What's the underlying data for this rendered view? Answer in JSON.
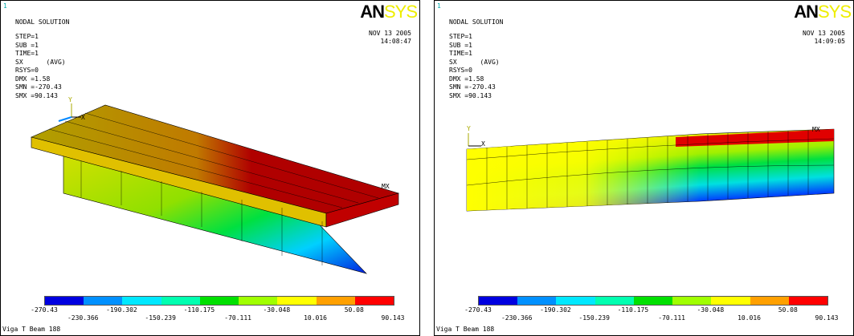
{
  "panels": [
    {
      "window_number": "1",
      "title": "NODAL SOLUTION",
      "info": [
        "STEP=1",
        "SUB =1",
        "TIME=1",
        "SX      (AVG)",
        "RSYS=0",
        "DMX =1.58",
        "SMN =-270.43",
        "SMX =90.143"
      ],
      "logo": [
        "AN",
        "SYS"
      ],
      "date": "NOV 13 2005",
      "time": "14:08:47",
      "axis_y": "Y",
      "axis_x": "X",
      "max_label": "MX",
      "legend": [
        -270.43,
        -230.366,
        -190.302,
        -150.239,
        -110.175,
        -70.111,
        -30.048,
        10.016,
        50.08,
        90.143
      ],
      "footer": "Viga T Beam 188"
    },
    {
      "window_number": "1",
      "title": "NODAL SOLUTION",
      "info": [
        "STEP=1",
        "SUB =1",
        "TIME=1",
        "SX      (AVG)",
        "RSYS=0",
        "DMX =1.58",
        "SMN =-270.43",
        "SMX =90.143"
      ],
      "logo": [
        "AN",
        "SYS"
      ],
      "date": "NOV 13 2005",
      "time": "14:09:05",
      "axis_y": "Y",
      "axis_x": "X",
      "max_label": "MX",
      "legend": [
        -270.43,
        -230.366,
        -190.302,
        -150.239,
        -110.175,
        -70.111,
        -30.048,
        10.016,
        50.08,
        90.143
      ],
      "footer": "Viga T Beam 188"
    }
  ]
}
